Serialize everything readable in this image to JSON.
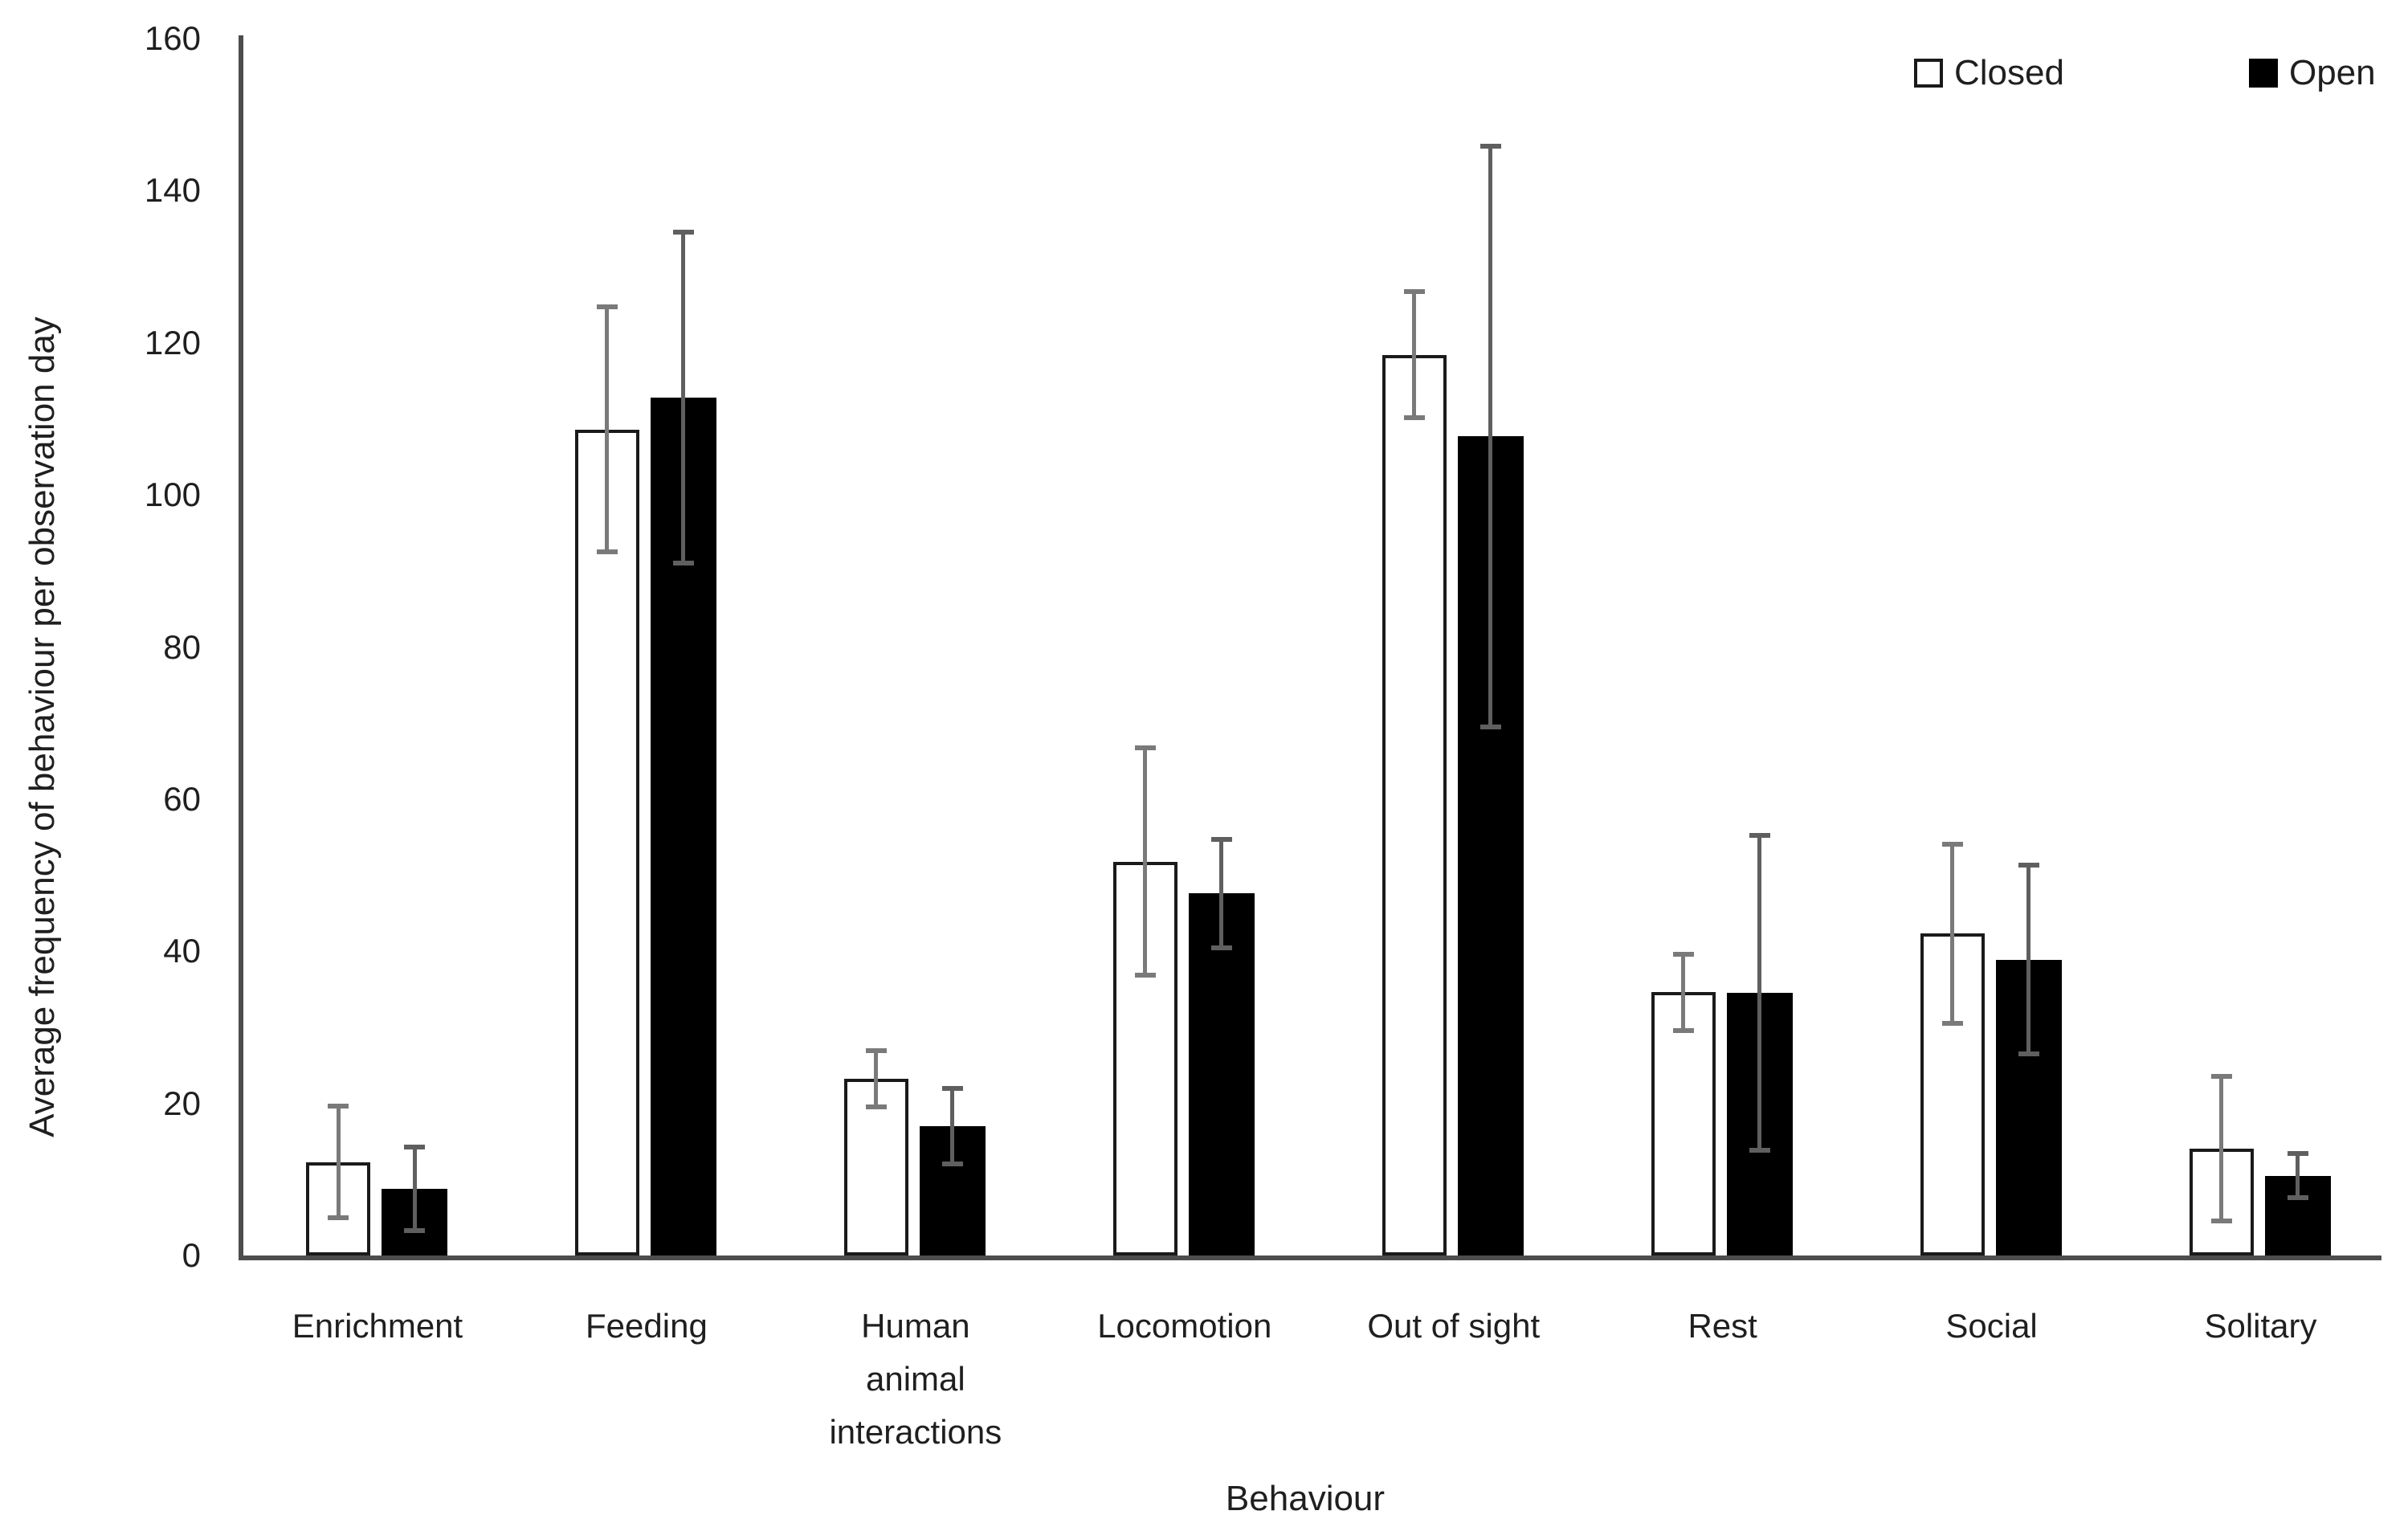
{
  "page": {
    "background": "#ffffff"
  },
  "chart_data": {
    "type": "bar",
    "title": "",
    "xlabel": "Behaviour",
    "ylabel": "Average frequency of behaviour per observation day",
    "ylim": [
      0,
      160
    ],
    "yticks": [
      0,
      20,
      40,
      60,
      80,
      100,
      120,
      140,
      160
    ],
    "grid": false,
    "legend_position": "top-right",
    "categories": [
      "Enrichment",
      "Feeding",
      "Human animal interactions",
      "Locomotion",
      "Out of sight",
      "Rest",
      "Social",
      "Solitary"
    ],
    "series": [
      {
        "name": "Closed",
        "fill": "#ffffff",
        "stroke": "#1a1a1a",
        "error_color": "#7a7a7a",
        "values": [
          12.3,
          108.6,
          23.2,
          51.8,
          118.4,
          34.6,
          42.3,
          14.0
        ],
        "errors": [
          7.3,
          16.1,
          3.7,
          14.9,
          8.3,
          5.0,
          11.8,
          9.5
        ]
      },
      {
        "name": "Open",
        "fill": "#000000",
        "stroke": "#000000",
        "error_color": "#5f5f5f",
        "values": [
          8.8,
          112.8,
          17.0,
          47.6,
          107.7,
          34.5,
          38.9,
          10.5
        ],
        "errors": [
          5.5,
          21.8,
          5.0,
          7.1,
          38.2,
          20.7,
          12.4,
          2.9
        ]
      }
    ],
    "axis_color": "#4d4d4d",
    "text_color": "#1f1f1f"
  }
}
